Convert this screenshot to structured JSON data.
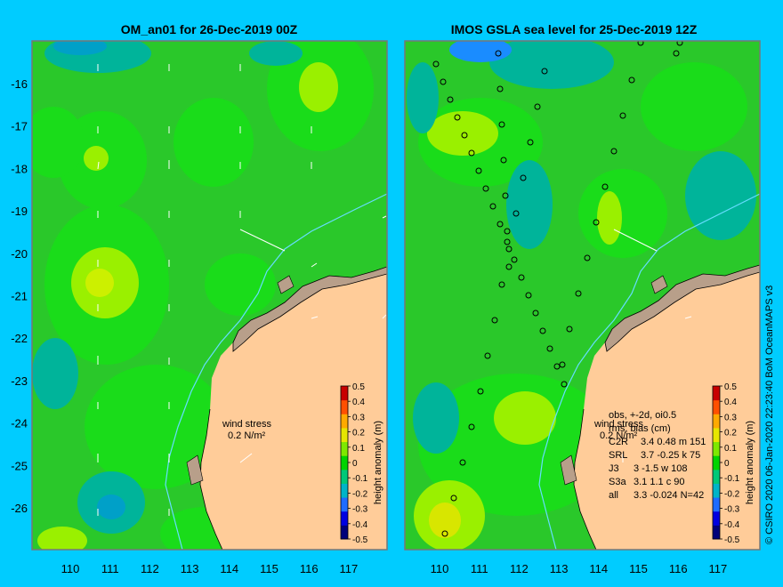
{
  "left_panel": {
    "title": "OM_an01 for 26-Dec-2019 00Z",
    "wind_stress_label": "wind stress",
    "wind_stress_value": "0.2 N/m²"
  },
  "right_panel": {
    "title": "IMOS GSLA sea level  for 25-Dec-2019 12Z",
    "wind_stress_label": "wind stress",
    "wind_stress_value": "0.2 N/m²",
    "obs_stats": {
      "header1": "obs, +-2d, oi0.5",
      "header2": "rms, bias (cm)",
      "rows": [
        {
          "sat": "C2R",
          "vals": "3.4  0.48 m 151"
        },
        {
          "sat": "SRL",
          "vals": "3.7 -0.25 k 75"
        },
        {
          "sat": "J3",
          "vals": "3  -1.5 w 108"
        },
        {
          "sat": "S3a",
          "vals": "3.1  1.1 c 90"
        },
        {
          "sat": "all",
          "vals": "3.3 -0.024 N=42"
        }
      ]
    }
  },
  "colorbar": {
    "label": "height anomaly (m)",
    "ticks": [
      "0.5",
      "0.4",
      "0.3",
      "0.2",
      "0.1",
      "0",
      "-0.1",
      "-0.2",
      "-0.3",
      "-0.4",
      "-0.5"
    ],
    "colors": [
      "#00007a",
      "#0000e0",
      "#1e6cff",
      "#00b4c8",
      "#00c878",
      "#00d400",
      "#7ee800",
      "#e6e600",
      "#ffaa00",
      "#ff5000",
      "#c80000"
    ]
  },
  "axes": {
    "lat_ticks": [
      "-16",
      "-17",
      "-18",
      "-19",
      "-20",
      "-21",
      "-22",
      "-23",
      "-24",
      "-25",
      "-26"
    ],
    "lon_ticks": [
      "110",
      "111",
      "112",
      "113",
      "114",
      "115",
      "116",
      "117"
    ]
  },
  "credit": "© CSIRO 2020   06-Jan-2020 22:23:40 BoM OceanMAPS v3",
  "colors": {
    "background": "#00ccff",
    "land": "#ffcc99",
    "coast": "#b89f8a",
    "ocean_base": "#22cc22",
    "contour_light": "#00e600"
  }
}
